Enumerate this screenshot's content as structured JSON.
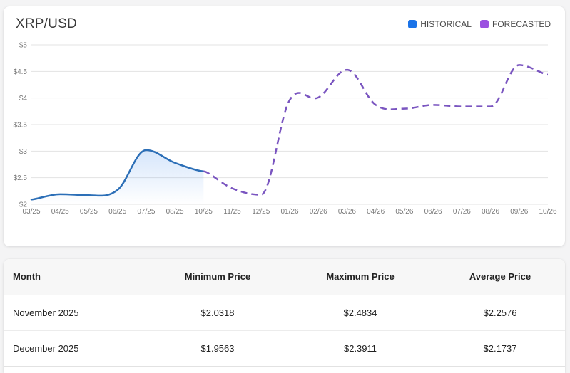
{
  "chart_card": {
    "title": "XRP/USD",
    "legend": [
      {
        "label": "HISTORICAL",
        "color": "#1a73e8"
      },
      {
        "label": "FORECASTED",
        "color": "#9b51e0"
      }
    ]
  },
  "chart_data": {
    "type": "line",
    "title": "XRP/USD",
    "xlabel": "",
    "ylabel": "",
    "ylim": [
      2,
      5
    ],
    "y_ticks": [
      "$2",
      "$2.5",
      "$3",
      "$3.5",
      "$4",
      "$4.5",
      "$5"
    ],
    "categories": [
      "03/25",
      "04/25",
      "05/25",
      "06/25",
      "07/25",
      "08/25",
      "10/25",
      "11/25",
      "12/25",
      "01/26",
      "02/26",
      "03/26",
      "04/26",
      "05/26",
      "06/26",
      "07/26",
      "08/26",
      "09/26",
      "10/26"
    ],
    "grid": true,
    "legend_position": "top-right",
    "series": [
      {
        "name": "HISTORICAL",
        "color": "#2c6fb7",
        "style": "solid",
        "fill": true,
        "values": [
          2.09,
          2.19,
          2.17,
          2.27,
          3.02,
          2.78,
          2.62,
          null,
          null,
          null,
          null,
          null,
          null,
          null,
          null,
          null,
          null,
          null,
          null
        ]
      },
      {
        "name": "FORECASTED",
        "color": "#7a55c0",
        "style": "dashed",
        "fill": false,
        "values": [
          null,
          null,
          null,
          null,
          null,
          null,
          2.62,
          2.3,
          2.18,
          3.96,
          4.01,
          4.53,
          3.87,
          3.8,
          3.87,
          3.84,
          3.84,
          4.62,
          4.44
        ]
      }
    ]
  },
  "table": {
    "headers": [
      "Month",
      "Minimum Price",
      "Maximum Price",
      "Average Price"
    ],
    "rows": [
      [
        "November 2025",
        "$2.0318",
        "$2.4834",
        "$2.2576"
      ],
      [
        "December 2025",
        "$1.9563",
        "$2.3911",
        "$2.1737"
      ]
    ]
  }
}
